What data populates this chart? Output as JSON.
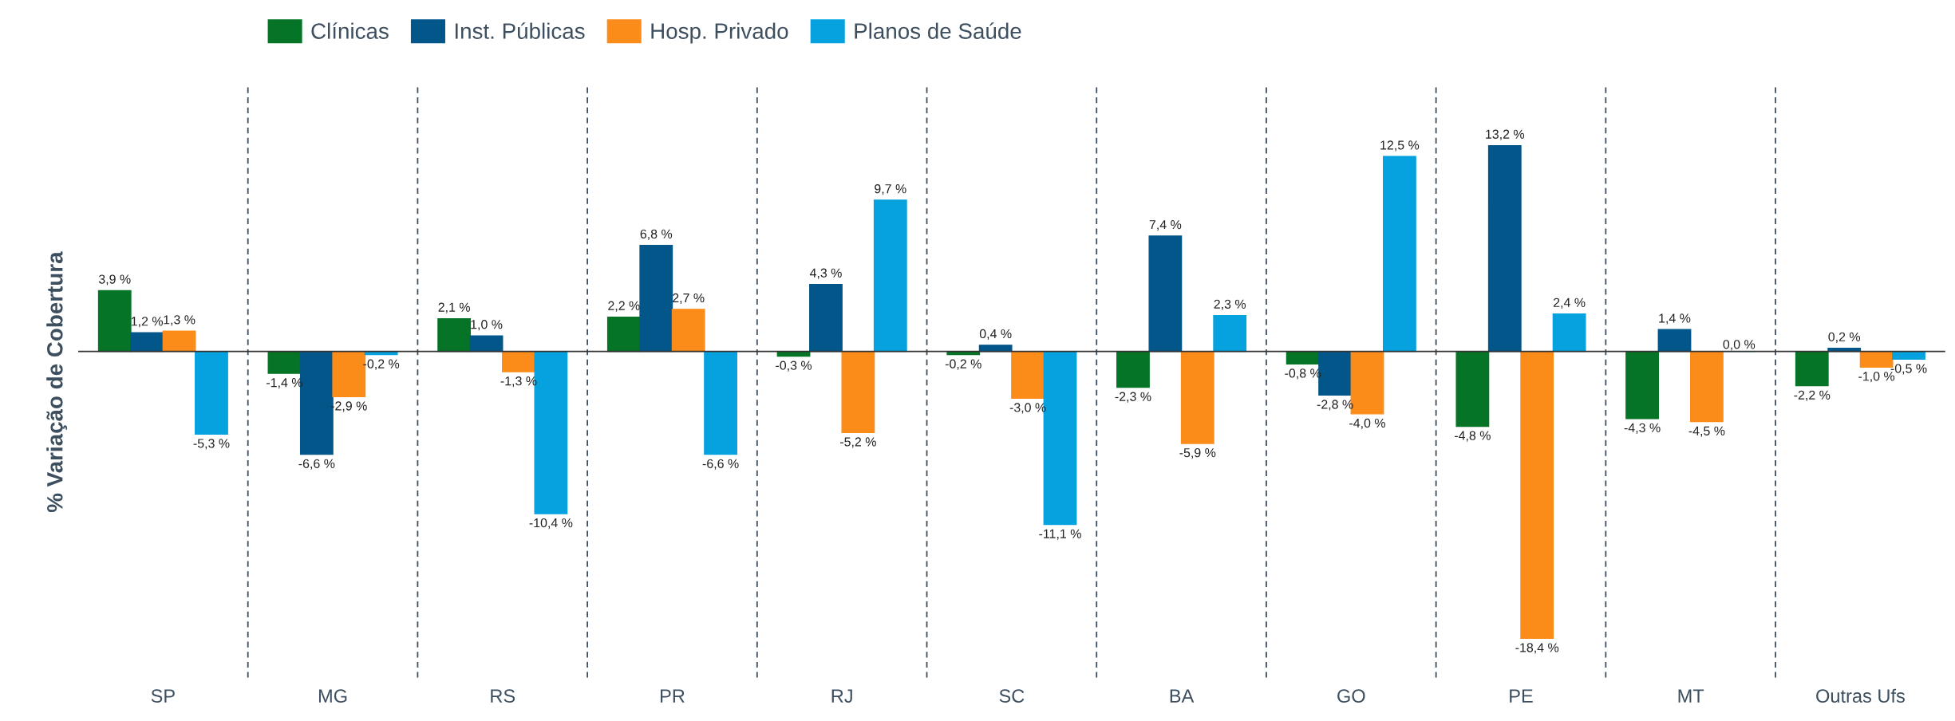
{
  "chart_data": {
    "type": "bar",
    "ylabel": "% Variação de Cobertura",
    "legend": "top",
    "categories": [
      "SP",
      "MG",
      "RS",
      "PR",
      "RJ",
      "SC",
      "BA",
      "GO",
      "PE",
      "MT",
      "Outras Ufs"
    ],
    "series": [
      {
        "name": "Clínicas",
        "color": "#067426",
        "values": [
          3.9,
          -1.4,
          2.1,
          2.2,
          -0.3,
          -0.2,
          -2.3,
          -0.8,
          -4.8,
          -4.3,
          -2.2
        ],
        "value_labels": [
          "3,9 %",
          "-1,4 %",
          "2,1 %",
          "2,2 %",
          "-0,3 %",
          "-0,2 %",
          "-2,3 %",
          "-0,8 %",
          "-4,8 %",
          "-4,3 %",
          "-2,2 %"
        ]
      },
      {
        "name": "Inst. Públicas",
        "color": "#03568a",
        "values": [
          1.2,
          -6.6,
          1.0,
          6.8,
          4.3,
          0.4,
          7.4,
          -2.8,
          13.2,
          1.4,
          0.2
        ],
        "value_labels": [
          "1,2 %",
          "-6,6 %",
          "1,0 %",
          "6,8 %",
          "4,3 %",
          "0,4 %",
          "7,4 %",
          "-2,8 %",
          "13,2 %",
          "1,4 %",
          "0,2 %"
        ]
      },
      {
        "name": "Hosp. Privado",
        "color": "#fb8c1a",
        "values": [
          1.3,
          -2.9,
          -1.3,
          2.7,
          -5.2,
          -3.0,
          -5.9,
          -4.0,
          -18.4,
          -4.5,
          -1.0
        ],
        "value_labels": [
          "1,3 %",
          "-2,9 %",
          "-1,3 %",
          "2,7 %",
          "-5,2 %",
          "-3,0 %",
          "-5,9 %",
          "-4,0 %",
          "-18,4 %",
          "-4,5 %",
          "-1,0 %"
        ]
      },
      {
        "name": "Planos de Saúde",
        "color": "#05a2df",
        "values": [
          -5.3,
          -0.2,
          -10.4,
          -6.6,
          9.7,
          -11.1,
          2.3,
          12.5,
          2.4,
          0.0,
          -0.5
        ],
        "value_labels": [
          "-5,3 %",
          "-0,2 %",
          "-10,4 %",
          "-6,6 %",
          "9,7 %",
          "-11,1 %",
          "2,3 %",
          "12,5 %",
          "2,4 %",
          "0,0 %",
          "-0,5 %"
        ]
      }
    ],
    "tick_labels": "x",
    "grid": false
  }
}
